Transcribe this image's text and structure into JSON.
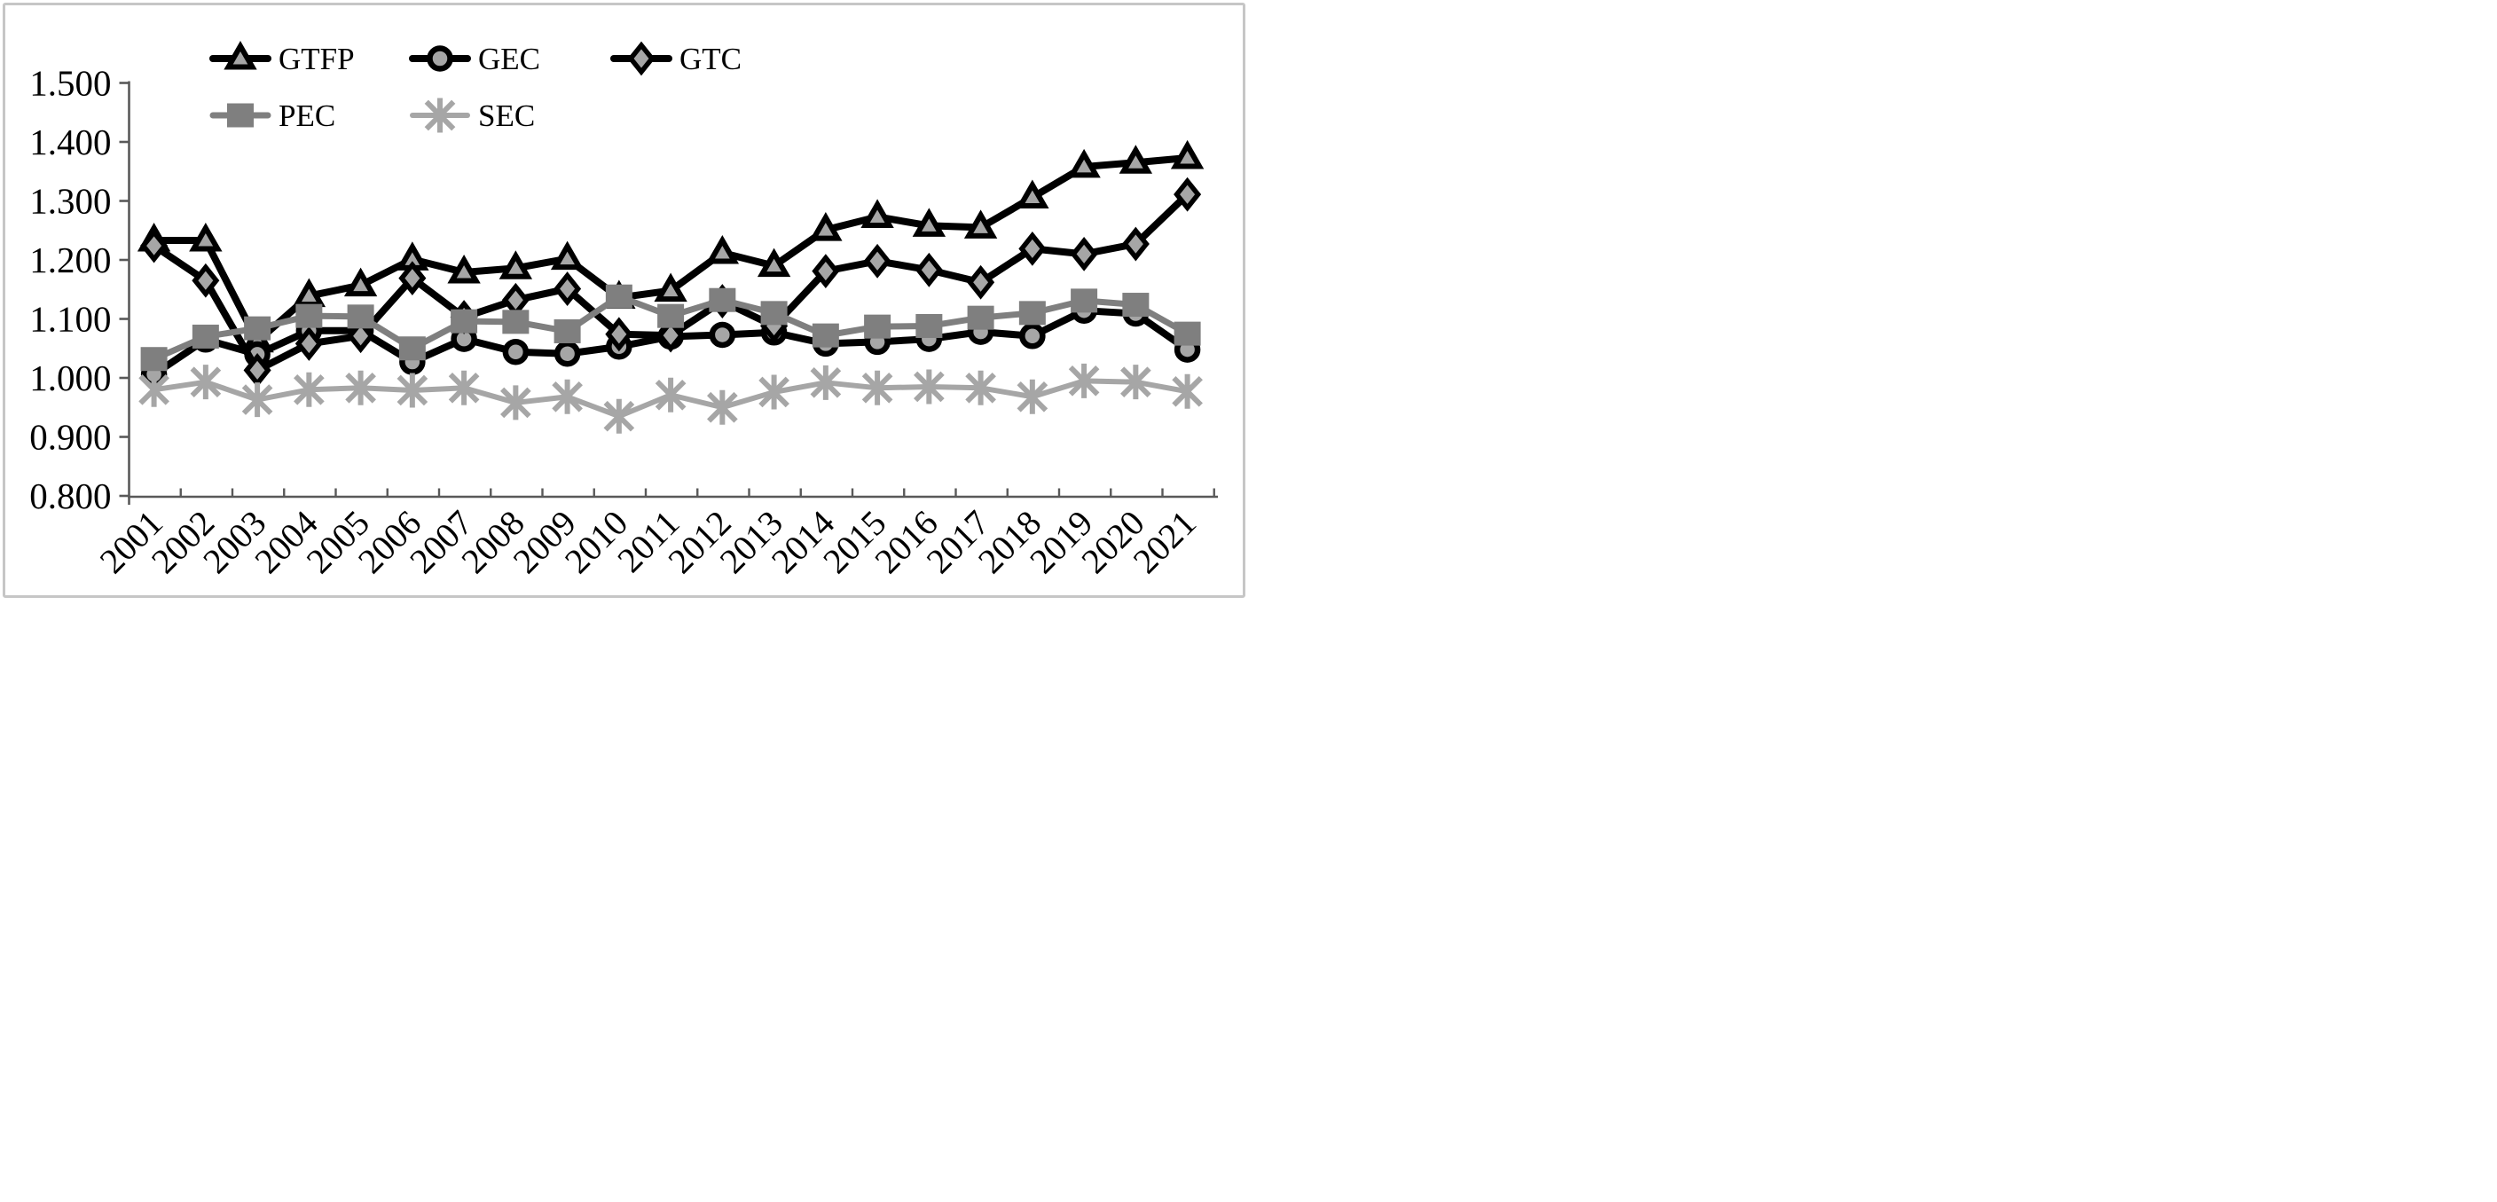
{
  "figure": {
    "background_color": "#ffffff",
    "border_color": "#c6c6c6",
    "axis_color": "#595959",
    "text_color": "#000000"
  },
  "chart_data": {
    "type": "line",
    "title": "",
    "xlabel": "",
    "ylabel": "",
    "grid": false,
    "legend_position": "top-left, two rows",
    "x_categories": [
      "2001",
      "2002",
      "2003",
      "2004",
      "2005",
      "2006",
      "2007",
      "2008",
      "2009",
      "2010",
      "2011",
      "2012",
      "2013",
      "2014",
      "2015",
      "2016",
      "2017",
      "2018",
      "2019",
      "2020",
      "2021"
    ],
    "y_axis": {
      "min": 0.8,
      "max": 1.5,
      "step": 0.1,
      "tick_labels": [
        "0.800",
        "0.900",
        "1.000",
        "1.100",
        "1.200",
        "1.300",
        "1.400",
        "1.500"
      ]
    },
    "series": [
      {
        "name": "GTFP",
        "marker": "triangle",
        "line_color": "#000000",
        "marker_fill": "#a6a6a6",
        "marker_stroke": "#000000",
        "values": [
          1.233,
          1.233,
          1.062,
          1.139,
          1.157,
          1.201,
          1.179,
          1.186,
          1.202,
          1.136,
          1.148,
          1.212,
          1.19,
          1.251,
          1.273,
          1.258,
          1.255,
          1.306,
          1.358,
          1.365,
          1.373
        ]
      },
      {
        "name": "GEC",
        "marker": "circle",
        "line_color": "#000000",
        "marker_fill": "#a6a6a6",
        "marker_stroke": "#000000",
        "values": [
          1.006,
          1.065,
          1.04,
          1.08,
          1.08,
          1.027,
          1.066,
          1.044,
          1.041,
          1.053,
          1.07,
          1.073,
          1.077,
          1.058,
          1.061,
          1.066,
          1.078,
          1.071,
          1.114,
          1.109,
          1.048
        ]
      },
      {
        "name": "GTC",
        "marker": "diamond",
        "line_color": "#000000",
        "marker_fill": "#a6a6a6",
        "marker_stroke": "#000000",
        "values": [
          1.224,
          1.165,
          1.013,
          1.058,
          1.071,
          1.169,
          1.103,
          1.132,
          1.151,
          1.074,
          1.072,
          1.13,
          1.088,
          1.181,
          1.198,
          1.183,
          1.162,
          1.219,
          1.21,
          1.227,
          1.311
        ]
      },
      {
        "name": "PEC",
        "marker": "square",
        "line_color": "#7f7f7f",
        "marker_fill": "#7f7f7f",
        "marker_stroke": "#7f7f7f",
        "values": [
          1.032,
          1.07,
          1.084,
          1.105,
          1.104,
          1.05,
          1.096,
          1.095,
          1.079,
          1.138,
          1.105,
          1.132,
          1.11,
          1.072,
          1.087,
          1.088,
          1.102,
          1.11,
          1.131,
          1.124,
          1.075
        ]
      },
      {
        "name": "SEC",
        "marker": "asterisk",
        "line_color": "#a6a6a6",
        "marker_fill": "#a6a6a6",
        "marker_stroke": "#a6a6a6",
        "values": [
          0.98,
          0.993,
          0.963,
          0.98,
          0.983,
          0.979,
          0.983,
          0.958,
          0.968,
          0.935,
          0.971,
          0.95,
          0.976,
          0.992,
          0.983,
          0.985,
          0.983,
          0.968,
          0.995,
          0.993,
          0.977
        ]
      }
    ],
    "legend": [
      {
        "label": "GTFP",
        "row": 0,
        "col": 0
      },
      {
        "label": "GEC",
        "row": 0,
        "col": 1
      },
      {
        "label": "GTC",
        "row": 0,
        "col": 2
      },
      {
        "label": "PEC",
        "row": 1,
        "col": 0
      },
      {
        "label": "SEC",
        "row": 1,
        "col": 1
      }
    ]
  }
}
